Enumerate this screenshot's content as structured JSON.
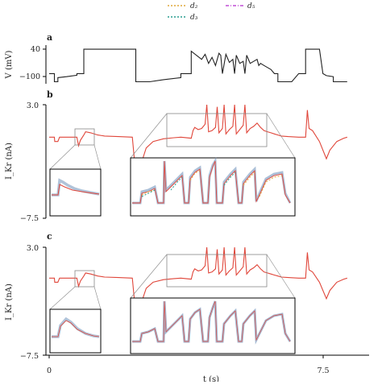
{
  "legend": {
    "entries": [
      {
        "label": "d₂",
        "color": "#e1a93a",
        "dash": "2,2"
      },
      {
        "label": "d₃",
        "color": "#2a9d8f",
        "dash": "2,2"
      },
      {
        "label": "d₅",
        "color": "#c04fd6",
        "dash": "4,2,1,2"
      }
    ]
  },
  "colors": {
    "voltage": "#222222",
    "model": "#e0463a",
    "data": "#8fa9c9",
    "axis": "#000000",
    "inset_box": "#000000",
    "zoom_box": "#888888"
  },
  "chart_data": [
    {
      "type": "line",
      "panel": "a",
      "ylabel": "V (mV)",
      "yticks": [
        "40",
        "−100"
      ],
      "ylim": [
        -130,
        60
      ],
      "xlim": [
        0,
        9
      ],
      "series": [
        {
          "x": [
            0,
            0.15,
            0.15,
            0.25,
            0.25,
            0.5,
            0.8,
            0.8,
            1.0,
            1.0,
            1.2,
            1.4,
            1.6,
            1.8,
            2.0,
            2.2,
            2.4,
            2.5,
            2.5,
            2.9,
            3.3,
            3.8,
            3.8,
            4.1,
            4.1,
            4.4,
            4.5,
            4.6,
            4.7,
            4.8,
            4.9,
            4.95,
            5.0,
            5.1,
            5.2,
            5.3,
            5.35,
            5.4,
            5.5,
            5.6,
            5.65,
            5.7,
            5.8,
            5.9,
            6.0,
            6.05,
            6.1,
            6.2,
            6.3,
            6.4,
            6.5,
            6.6,
            6.6,
            7.0,
            7.2,
            7.4,
            7.4,
            7.7,
            7.75,
            7.8,
            7.9,
            8.0,
            8.2,
            8.2,
            8.6
          ],
          "y": [
            -80,
            -80,
            -120,
            -120,
            -100,
            -95,
            -88,
            -80,
            -80,
            40,
            40,
            40,
            40,
            40,
            40,
            40,
            40,
            40,
            -120,
            -120,
            -110,
            -100,
            -80,
            -80,
            30,
            -10,
            15,
            -30,
            0,
            -40,
            20,
            10,
            -80,
            15,
            -25,
            -10,
            -80,
            10,
            -30,
            -20,
            -80,
            10,
            -30,
            -20,
            -10,
            -40,
            -30,
            -40,
            -50,
            -60,
            -80,
            -80,
            -120,
            -120,
            -80,
            -80,
            40,
            40,
            40,
            40,
            -80,
            -90,
            -95,
            -120,
            -120
          ]
        }
      ]
    },
    {
      "type": "line",
      "panel": "b",
      "ylabel": "I_Kr (nA)",
      "yticks": [
        "3.0",
        "−7.5"
      ],
      "ylim": [
        -7.5,
        3.0
      ],
      "xlim": [
        0,
        9
      ],
      "series": [
        {
          "name": "",
          "x": [
            0,
            0.15,
            0.16,
            0.25,
            0.3,
            0.6,
            0.8,
            0.85,
            0.9,
            1.0,
            1.05,
            1.2,
            1.4,
            1.6,
            2.0,
            2.4,
            2.5,
            2.55,
            2.6,
            2.7,
            2.8,
            3.0,
            3.3,
            3.6,
            3.8,
            4.1,
            4.15,
            4.2,
            4.3,
            4.4,
            4.5,
            4.55,
            4.6,
            4.7,
            4.8,
            4.85,
            4.9,
            5.0,
            5.05,
            5.1,
            5.2,
            5.3,
            5.35,
            5.4,
            5.5,
            5.6,
            5.65,
            5.7,
            5.8,
            5.9,
            6.0,
            6.1,
            6.2,
            6.3,
            6.4,
            6.5,
            6.6,
            6.7,
            6.9,
            7.2,
            7.4,
            7.45,
            7.5,
            7.6,
            7.8,
            8.0,
            8.1,
            8.3,
            8.5,
            8.6
          ],
          "y": [
            0,
            0,
            -0.4,
            -0.4,
            0,
            0,
            0,
            -0.8,
            -0.3,
            0.2,
            0.5,
            0.4,
            0.2,
            0.1,
            0.05,
            0.0,
            -3.5,
            -4.3,
            -3.2,
            -2.0,
            -1.0,
            -0.4,
            -0.15,
            -0.05,
            0,
            -0.1,
            0.6,
            0.9,
            0.7,
            0.8,
            1.2,
            3.0,
            0.5,
            0.6,
            0.9,
            2.8,
            0.4,
            0.8,
            3.0,
            0.3,
            0.7,
            1.0,
            3.0,
            0.3,
            0.7,
            1.1,
            3.0,
            0.4,
            0.8,
            1.0,
            1.3,
            0.9,
            0.6,
            0.5,
            0.4,
            0.3,
            0.2,
            0.1,
            0.05,
            0.0,
            0.0,
            2.5,
            0.8,
            0.6,
            -0.4,
            -2.0,
            -1.2,
            -0.4,
            -0.1,
            0
          ]
        }
      ]
    },
    {
      "type": "line",
      "panel": "c",
      "ylabel": "I_Kr (nA)",
      "yticks": [
        "3.0",
        "−7.5"
      ],
      "xticks": [
        "0",
        "7.5"
      ],
      "xlabel": "t (s)",
      "ylim": [
        -7.5,
        3.0
      ],
      "xlim": [
        0,
        9
      ],
      "series": [
        {
          "name": "",
          "x": [
            0,
            0.15,
            0.16,
            0.25,
            0.3,
            0.6,
            0.8,
            0.85,
            0.9,
            1.0,
            1.05,
            1.2,
            1.4,
            1.6,
            2.0,
            2.4,
            2.5,
            2.55,
            2.6,
            2.7,
            2.8,
            3.0,
            3.3,
            3.6,
            3.8,
            4.1,
            4.15,
            4.2,
            4.3,
            4.4,
            4.5,
            4.55,
            4.6,
            4.7,
            4.8,
            4.85,
            4.9,
            5.0,
            5.05,
            5.1,
            5.2,
            5.3,
            5.35,
            5.4,
            5.5,
            5.6,
            5.65,
            5.7,
            5.8,
            5.9,
            6.0,
            6.1,
            6.2,
            6.3,
            6.4,
            6.5,
            6.6,
            6.7,
            6.9,
            7.2,
            7.4,
            7.45,
            7.5,
            7.6,
            7.8,
            8.0,
            8.1,
            8.3,
            8.5,
            8.6
          ],
          "y": [
            0,
            0,
            -0.4,
            -0.4,
            0,
            0,
            0,
            -0.8,
            -0.3,
            0.2,
            0.5,
            0.4,
            0.2,
            0.1,
            0.05,
            0.0,
            -3.6,
            -4.4,
            -3.3,
            -2.0,
            -1.0,
            -0.4,
            -0.15,
            -0.05,
            0,
            -0.1,
            0.6,
            0.9,
            0.7,
            0.8,
            1.2,
            3.0,
            0.5,
            0.6,
            0.9,
            2.8,
            0.4,
            0.8,
            3.0,
            0.3,
            0.7,
            1.0,
            3.0,
            0.3,
            0.7,
            1.1,
            3.0,
            0.4,
            0.8,
            1.0,
            1.3,
            0.9,
            0.6,
            0.5,
            0.4,
            0.3,
            0.2,
            0.1,
            0.05,
            0.0,
            0.0,
            2.5,
            0.8,
            0.6,
            -0.4,
            -2.0,
            -1.2,
            -0.4,
            -0.1,
            0
          ]
        }
      ]
    }
  ]
}
